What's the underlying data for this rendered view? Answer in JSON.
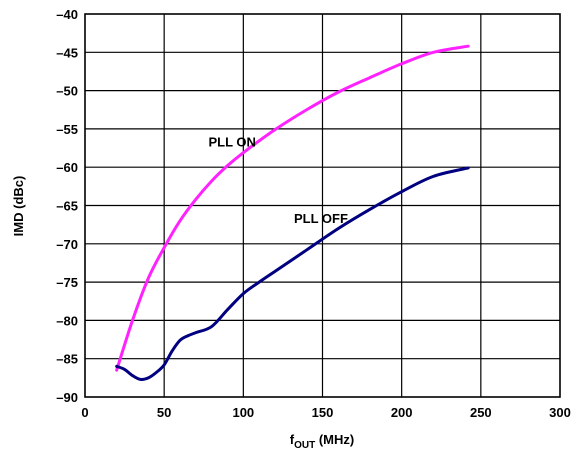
{
  "chart_data": {
    "type": "line",
    "xlabel": "f",
    "xlabel_sub": "OUT",
    "xlabel_unit": " (MHz)",
    "ylabel": "IMD (dBc)",
    "xlim": [
      0,
      300
    ],
    "ylim": [
      -90,
      -40
    ],
    "x_ticks": [
      0,
      50,
      100,
      150,
      200,
      250,
      300
    ],
    "y_ticks": [
      -40,
      -45,
      -50,
      -55,
      -60,
      -65,
      -70,
      -75,
      -80,
      -85,
      -90
    ],
    "x_tick_labels": [
      "0",
      "50",
      "100",
      "150",
      "200",
      "250",
      "300"
    ],
    "y_tick_labels": [
      "–40",
      "–45",
      "–50",
      "–55",
      "–60",
      "–65",
      "–70",
      "–75",
      "–80",
      "–85",
      "–90"
    ],
    "grid": true,
    "series": [
      {
        "name": "PLL ON",
        "color": "#ff22ff",
        "x": [
          20,
          30,
          40,
          50,
          60,
          70,
          80,
          90,
          100,
          120,
          140,
          160,
          180,
          200,
          220,
          242
        ],
        "y": [
          -86.5,
          -80,
          -74.5,
          -70.5,
          -67,
          -64.2,
          -61.8,
          -59.8,
          -58.1,
          -55.1,
          -52.5,
          -50.2,
          -48.3,
          -46.5,
          -45.0,
          -44.2
        ]
      },
      {
        "name": "PLL OFF",
        "color": "#000080",
        "x": [
          20,
          25,
          30,
          35,
          40,
          45,
          50,
          55,
          60,
          65,
          70,
          80,
          90,
          100,
          110,
          120,
          140,
          160,
          180,
          200,
          220,
          242
        ],
        "y": [
          -86,
          -86.4,
          -87.2,
          -87.7,
          -87.5,
          -86.8,
          -85.8,
          -84.0,
          -82.6,
          -82.0,
          -81.6,
          -80.8,
          -78.6,
          -76.5,
          -75.0,
          -73.6,
          -70.8,
          -68.0,
          -65.5,
          -63.2,
          -61.2,
          -60.1
        ]
      }
    ],
    "annotations": [
      {
        "text": "PLL ON",
        "x": 78,
        "y": -57.3
      },
      {
        "text": "PLL OFF",
        "x": 132,
        "y": -67.3
      }
    ]
  }
}
